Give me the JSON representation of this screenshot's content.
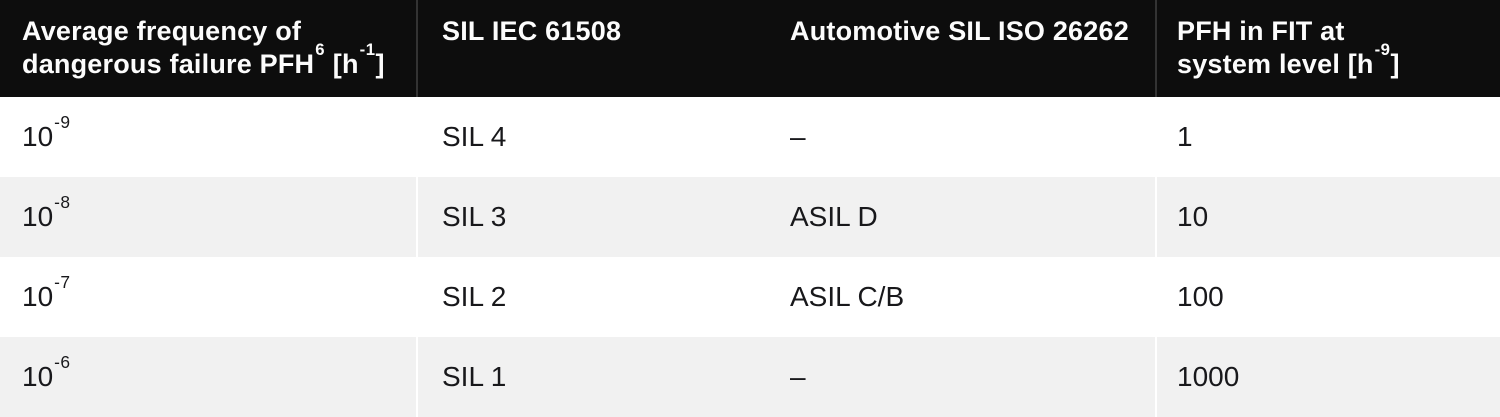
{
  "table": {
    "header": {
      "col1": {
        "line1": "Average frequency of",
        "line2_text": "dangerous failure PFH",
        "line2_sup": "6",
        "line2_mid": " [h",
        "line2_sup2": "-1",
        "line2_end": "]"
      },
      "col2": "SIL IEC 61508",
      "col3": "Automotive SIL ISO 26262",
      "col4": {
        "line1": "PFH in FIT at",
        "line2_text": "system level [h",
        "line2_sup": "-9",
        "line2_end": "]"
      }
    },
    "rows": [
      {
        "pfh_base": "10",
        "pfh_sup": "-9",
        "sil": "SIL 4",
        "asil": "–",
        "fit": "1"
      },
      {
        "pfh_base": "10",
        "pfh_sup": "-8",
        "sil": "SIL 3",
        "asil": "ASIL D",
        "fit": "10"
      },
      {
        "pfh_base": "10",
        "pfh_sup": "-7",
        "sil": "SIL 2",
        "asil": "ASIL C/B",
        "fit": "100"
      },
      {
        "pfh_base": "10",
        "pfh_sup": "-6",
        "sil": "SIL 1",
        "asil": "–",
        "fit": "1000"
      }
    ]
  },
  "colors": {
    "header_bg": "#0d0d0d",
    "header_text": "#fcfcfc",
    "body_text": "#18181b",
    "alt_row_bg": "#f1f1f1",
    "divider_header": "#333333",
    "divider_body": "#ffffff"
  }
}
